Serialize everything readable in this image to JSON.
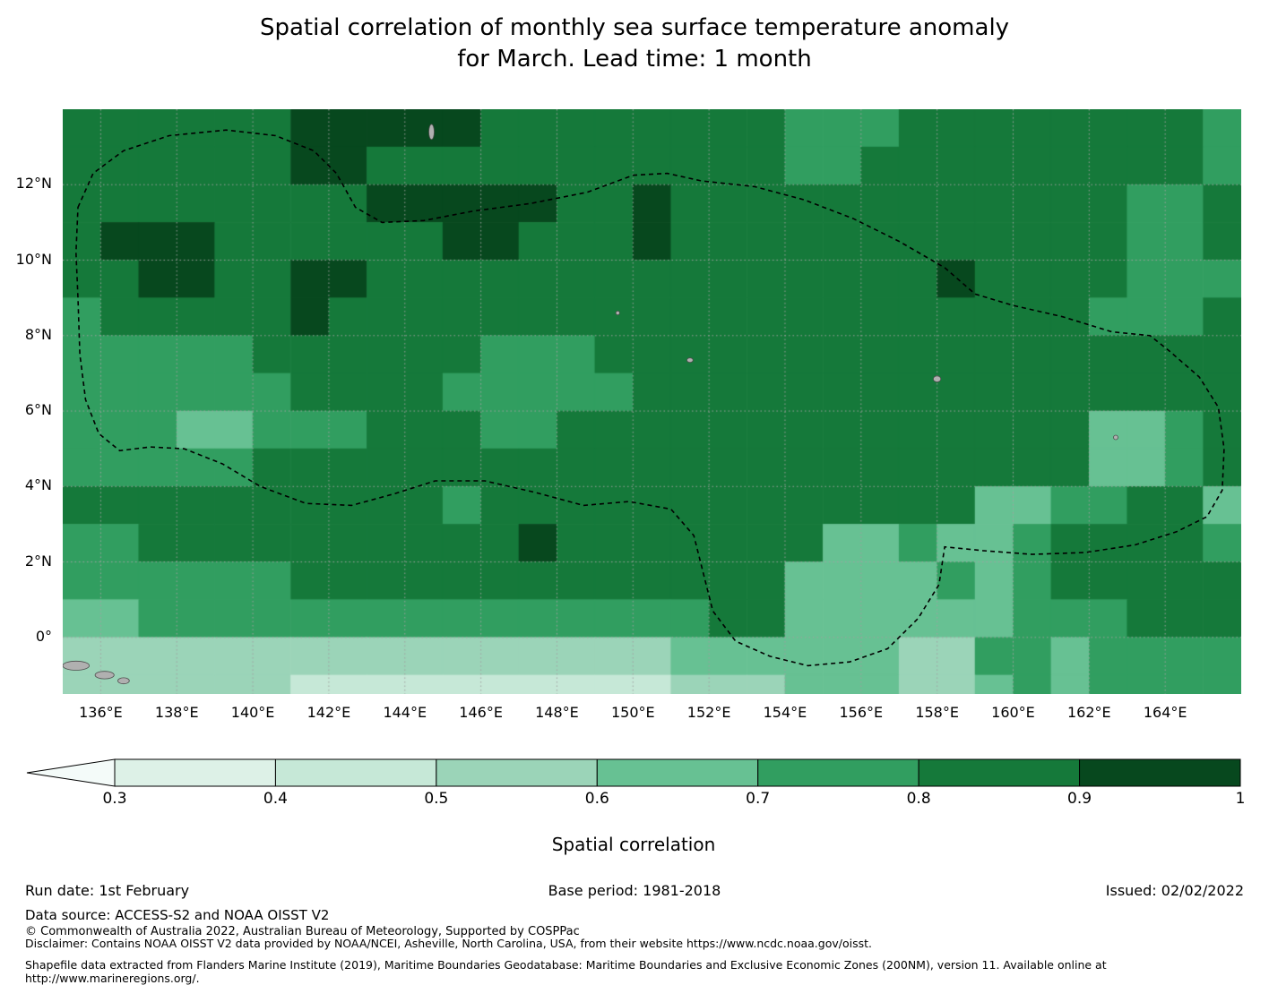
{
  "title": {
    "line1": "Spatial correlation of monthly sea surface temperature anomaly",
    "line2": "for March. Lead time: 1 month"
  },
  "footer": {
    "run_date": "Run date: 1st February",
    "base_period": "Base period: 1981-2018",
    "issued": "Issued: 02/02/2022",
    "data_source": "Data source: ACCESS-S2 and NOAA OISST V2",
    "copyright": "© Commonwealth of Australia 2022, Australian Bureau of Meteorology, Supported by COSPPac",
    "disclaimer": "Disclaimer: Contains NOAA OISST V2 data provided by NOAA/NCEI, Asheville, North Carolina, USA, from their website https://www.ncdc.noaa.gov/oisst.",
    "shapefile": "Shapefile data extracted from Flanders Marine Institute (2019), Maritime Boundaries Geodatabase: Maritime Boundaries and Exclusive Economic Zones (200NM), version 11. Available online at http://www.marineregions.org/."
  },
  "chart_data": {
    "type": "heatmap",
    "title": "Spatial correlation of monthly sea surface temperature anomaly for March. Lead time: 1 month",
    "xlabel": "",
    "ylabel": "",
    "lon_range": [
      135,
      166
    ],
    "lat_range": [
      -1.5,
      14
    ],
    "x_tick_lons": [
      136,
      138,
      140,
      142,
      144,
      146,
      148,
      150,
      152,
      154,
      156,
      158,
      160,
      162,
      164
    ],
    "x_tick_labels": [
      "136°E",
      "138°E",
      "140°E",
      "142°E",
      "144°E",
      "146°E",
      "148°E",
      "150°E",
      "152°E",
      "154°E",
      "156°E",
      "158°E",
      "160°E",
      "162°E",
      "164°E"
    ],
    "y_tick_lats": [
      12,
      10,
      8,
      6,
      4,
      2,
      0
    ],
    "y_tick_labels": [
      "12°N",
      "10°N",
      "8°N",
      "6°N",
      "4°N",
      "2°N",
      "0°"
    ],
    "grid_on": true,
    "grid_color": "#a0a0a0",
    "colorbar": {
      "label": "Spatial correlation",
      "orientation": "horizontal",
      "tick_labels": [
        "0.3",
        "0.4",
        "0.5",
        "0.6",
        "0.7",
        "0.8",
        "0.9",
        "1"
      ],
      "bin_edges": [
        0.3,
        0.4,
        0.5,
        0.6,
        0.7,
        0.8,
        0.9,
        1.0
      ],
      "bin_colors": [
        "#ddf1e7",
        "#c6e8d7",
        "#9bd4b8",
        "#67c193",
        "#319e60",
        "#15793a",
        "#07481e"
      ],
      "under_color": "#f4fbf9",
      "extend": "min"
    },
    "grid": {
      "lon_centers": [
        135.5,
        136.5,
        137.5,
        138.5,
        139.5,
        140.5,
        141.5,
        142.5,
        143.5,
        144.5,
        145.5,
        146.5,
        147.5,
        148.5,
        149.5,
        150.5,
        151.5,
        152.5,
        153.5,
        154.5,
        155.5,
        156.5,
        157.5,
        158.5,
        159.5,
        160.5,
        161.5,
        162.5,
        163.5,
        164.5,
        165.5
      ],
      "lat_centers": [
        13.5,
        12.5,
        11.5,
        10.5,
        9.5,
        8.5,
        7.5,
        6.5,
        5.5,
        4.5,
        3.5,
        2.5,
        1.5,
        0.5,
        -0.5,
        -1.5
      ],
      "values": [
        [
          0.85,
          0.85,
          0.85,
          0.85,
          0.85,
          0.85,
          0.95,
          0.95,
          0.95,
          0.95,
          0.95,
          0.85,
          0.85,
          0.85,
          0.85,
          0.85,
          0.85,
          0.85,
          0.85,
          0.75,
          0.75,
          0.75,
          0.85,
          0.85,
          0.85,
          0.85,
          0.85,
          0.85,
          0.85,
          0.85,
          0.75
        ],
        [
          0.85,
          0.85,
          0.85,
          0.85,
          0.85,
          0.85,
          0.95,
          0.95,
          0.85,
          0.85,
          0.85,
          0.85,
          0.85,
          0.85,
          0.85,
          0.85,
          0.85,
          0.85,
          0.85,
          0.75,
          0.75,
          0.85,
          0.85,
          0.85,
          0.85,
          0.85,
          0.85,
          0.85,
          0.85,
          0.85,
          0.75
        ],
        [
          0.85,
          0.85,
          0.85,
          0.85,
          0.85,
          0.85,
          0.85,
          0.85,
          0.95,
          0.95,
          0.95,
          0.95,
          0.95,
          0.85,
          0.85,
          0.95,
          0.85,
          0.85,
          0.85,
          0.85,
          0.85,
          0.85,
          0.85,
          0.85,
          0.85,
          0.85,
          0.85,
          0.85,
          0.75,
          0.75,
          0.85
        ],
        [
          0.85,
          0.95,
          0.95,
          0.95,
          0.85,
          0.85,
          0.85,
          0.85,
          0.85,
          0.85,
          0.95,
          0.95,
          0.85,
          0.85,
          0.85,
          0.95,
          0.85,
          0.85,
          0.85,
          0.85,
          0.85,
          0.85,
          0.85,
          0.85,
          0.85,
          0.85,
          0.85,
          0.85,
          0.75,
          0.75,
          0.85
        ],
        [
          0.85,
          0.85,
          0.95,
          0.95,
          0.85,
          0.85,
          0.95,
          0.95,
          0.85,
          0.85,
          0.85,
          0.85,
          0.85,
          0.85,
          0.85,
          0.85,
          0.85,
          0.85,
          0.85,
          0.85,
          0.85,
          0.85,
          0.85,
          0.95,
          0.85,
          0.85,
          0.85,
          0.85,
          0.75,
          0.75,
          0.75
        ],
        [
          0.75,
          0.85,
          0.85,
          0.85,
          0.85,
          0.85,
          0.95,
          0.85,
          0.85,
          0.85,
          0.85,
          0.85,
          0.85,
          0.85,
          0.85,
          0.85,
          0.85,
          0.85,
          0.85,
          0.85,
          0.85,
          0.85,
          0.85,
          0.85,
          0.85,
          0.85,
          0.85,
          0.75,
          0.75,
          0.75,
          0.85
        ],
        [
          0.75,
          0.75,
          0.75,
          0.75,
          0.75,
          0.85,
          0.85,
          0.85,
          0.85,
          0.85,
          0.85,
          0.75,
          0.75,
          0.75,
          0.85,
          0.85,
          0.85,
          0.85,
          0.85,
          0.85,
          0.85,
          0.85,
          0.85,
          0.85,
          0.85,
          0.85,
          0.85,
          0.85,
          0.85,
          0.85,
          0.85
        ],
        [
          0.75,
          0.75,
          0.75,
          0.75,
          0.75,
          0.75,
          0.85,
          0.85,
          0.85,
          0.85,
          0.75,
          0.75,
          0.75,
          0.75,
          0.75,
          0.85,
          0.85,
          0.85,
          0.85,
          0.85,
          0.85,
          0.85,
          0.85,
          0.85,
          0.85,
          0.85,
          0.85,
          0.85,
          0.85,
          0.85,
          0.85
        ],
        [
          0.75,
          0.75,
          0.75,
          0.65,
          0.65,
          0.75,
          0.75,
          0.75,
          0.85,
          0.85,
          0.85,
          0.75,
          0.75,
          0.85,
          0.85,
          0.85,
          0.85,
          0.85,
          0.85,
          0.85,
          0.85,
          0.85,
          0.85,
          0.85,
          0.85,
          0.85,
          0.85,
          0.65,
          0.65,
          0.75,
          0.85
        ],
        [
          0.75,
          0.75,
          0.75,
          0.75,
          0.75,
          0.85,
          0.85,
          0.85,
          0.85,
          0.85,
          0.85,
          0.85,
          0.85,
          0.85,
          0.85,
          0.85,
          0.85,
          0.85,
          0.85,
          0.85,
          0.85,
          0.85,
          0.85,
          0.85,
          0.85,
          0.85,
          0.85,
          0.65,
          0.65,
          0.75,
          0.85
        ],
        [
          0.85,
          0.85,
          0.85,
          0.85,
          0.85,
          0.85,
          0.85,
          0.85,
          0.85,
          0.85,
          0.75,
          0.85,
          0.85,
          0.85,
          0.85,
          0.85,
          0.85,
          0.85,
          0.85,
          0.85,
          0.85,
          0.85,
          0.85,
          0.85,
          0.65,
          0.65,
          0.75,
          0.75,
          0.85,
          0.85,
          0.65
        ],
        [
          0.75,
          0.75,
          0.85,
          0.85,
          0.85,
          0.85,
          0.85,
          0.85,
          0.85,
          0.85,
          0.85,
          0.85,
          0.95,
          0.85,
          0.85,
          0.85,
          0.85,
          0.85,
          0.85,
          0.85,
          0.65,
          0.65,
          0.75,
          0.65,
          0.65,
          0.75,
          0.85,
          0.85,
          0.85,
          0.85,
          0.75
        ],
        [
          0.75,
          0.75,
          0.75,
          0.75,
          0.75,
          0.75,
          0.85,
          0.85,
          0.85,
          0.85,
          0.85,
          0.85,
          0.85,
          0.85,
          0.85,
          0.85,
          0.85,
          0.85,
          0.85,
          0.65,
          0.65,
          0.65,
          0.65,
          0.75,
          0.65,
          0.75,
          0.85,
          0.85,
          0.85,
          0.85,
          0.85
        ],
        [
          0.65,
          0.65,
          0.75,
          0.75,
          0.75,
          0.75,
          0.75,
          0.75,
          0.75,
          0.75,
          0.75,
          0.75,
          0.75,
          0.75,
          0.75,
          0.75,
          0.75,
          0.85,
          0.85,
          0.65,
          0.65,
          0.65,
          0.65,
          0.65,
          0.65,
          0.75,
          0.75,
          0.75,
          0.85,
          0.85,
          0.85
        ],
        [
          0.55,
          0.55,
          0.55,
          0.55,
          0.55,
          0.55,
          0.55,
          0.55,
          0.55,
          0.55,
          0.55,
          0.55,
          0.55,
          0.55,
          0.55,
          0.55,
          0.65,
          0.65,
          0.65,
          0.65,
          0.65,
          0.65,
          0.55,
          0.55,
          0.75,
          0.75,
          0.65,
          0.75,
          0.75,
          0.75,
          0.75
        ],
        [
          0.55,
          0.55,
          0.55,
          0.55,
          0.55,
          0.55,
          0.45,
          0.45,
          0.45,
          0.45,
          0.45,
          0.45,
          0.45,
          0.45,
          0.45,
          0.45,
          0.55,
          0.55,
          0.55,
          0.65,
          0.65,
          0.65,
          0.55,
          0.55,
          0.65,
          0.75,
          0.65,
          0.75,
          0.75,
          0.75,
          0.75
        ]
      ]
    },
    "eez_boundary": [
      [
        135.4,
        11.4
      ],
      [
        135.8,
        12.3
      ],
      [
        136.6,
        12.9
      ],
      [
        137.8,
        13.3
      ],
      [
        139.3,
        13.45
      ],
      [
        140.6,
        13.3
      ],
      [
        141.6,
        12.9
      ],
      [
        142.2,
        12.3
      ],
      [
        142.7,
        11.4
      ],
      [
        143.4,
        11.0
      ],
      [
        144.5,
        11.05
      ],
      [
        145.8,
        11.3
      ],
      [
        147.3,
        11.5
      ],
      [
        148.8,
        11.8
      ],
      [
        150.0,
        12.25
      ],
      [
        150.9,
        12.3
      ],
      [
        151.8,
        12.1
      ],
      [
        153.2,
        11.95
      ],
      [
        154.5,
        11.6
      ],
      [
        155.8,
        11.1
      ],
      [
        157.0,
        10.5
      ],
      [
        158.2,
        9.8
      ],
      [
        159.0,
        9.1
      ],
      [
        160.0,
        8.8
      ],
      [
        161.3,
        8.5
      ],
      [
        162.6,
        8.1
      ],
      [
        163.6,
        8.0
      ],
      [
        164.1,
        7.6
      ],
      [
        164.9,
        6.9
      ],
      [
        165.4,
        6.1
      ],
      [
        165.55,
        5.0
      ],
      [
        165.5,
        3.9
      ],
      [
        165.1,
        3.2
      ],
      [
        164.3,
        2.8
      ],
      [
        163.2,
        2.45
      ],
      [
        161.9,
        2.25
      ],
      [
        160.5,
        2.2
      ],
      [
        159.2,
        2.3
      ],
      [
        158.2,
        2.4
      ],
      [
        158.05,
        1.4
      ],
      [
        157.5,
        0.5
      ],
      [
        156.7,
        -0.3
      ],
      [
        155.7,
        -0.65
      ],
      [
        154.6,
        -0.75
      ],
      [
        153.6,
        -0.5
      ],
      [
        152.7,
        -0.1
      ],
      [
        152.1,
        0.7
      ],
      [
        151.85,
        1.7
      ],
      [
        151.6,
        2.7
      ],
      [
        151.0,
        3.4
      ],
      [
        149.9,
        3.6
      ],
      [
        148.7,
        3.5
      ],
      [
        147.4,
        3.85
      ],
      [
        146.1,
        4.15
      ],
      [
        144.8,
        4.15
      ],
      [
        143.7,
        3.8
      ],
      [
        142.6,
        3.5
      ],
      [
        141.4,
        3.55
      ],
      [
        140.2,
        4.0
      ],
      [
        139.2,
        4.6
      ],
      [
        138.2,
        5.0
      ],
      [
        137.3,
        5.05
      ],
      [
        136.5,
        4.95
      ],
      [
        135.95,
        5.4
      ],
      [
        135.6,
        6.3
      ],
      [
        135.45,
        7.5
      ],
      [
        135.4,
        9.0
      ],
      [
        135.35,
        10.2
      ],
      [
        135.4,
        11.4
      ]
    ],
    "islands": [
      {
        "lon": 135.35,
        "lat": -0.75,
        "rx": 0.35,
        "ry": 0.12
      },
      {
        "lon": 136.1,
        "lat": -1.0,
        "rx": 0.25,
        "ry": 0.1
      },
      {
        "lon": 136.6,
        "lat": -1.15,
        "rx": 0.15,
        "ry": 0.08
      },
      {
        "lon": 144.7,
        "lat": 13.4,
        "rx": 0.07,
        "ry": 0.2
      },
      {
        "lon": 149.6,
        "lat": 8.6,
        "rx": 0.05,
        "ry": 0.05
      },
      {
        "lon": 151.5,
        "lat": 7.35,
        "rx": 0.08,
        "ry": 0.06
      },
      {
        "lon": 158.0,
        "lat": 6.85,
        "rx": 0.1,
        "ry": 0.08
      },
      {
        "lon": 162.7,
        "lat": 5.3,
        "rx": 0.06,
        "ry": 0.06
      },
      {
        "lon": 149.5,
        "lat": -1.85,
        "rx": 0.18,
        "ry": 0.1
      }
    ],
    "land_color": "#b0b0b0",
    "boundary_style": "dashed-black"
  }
}
